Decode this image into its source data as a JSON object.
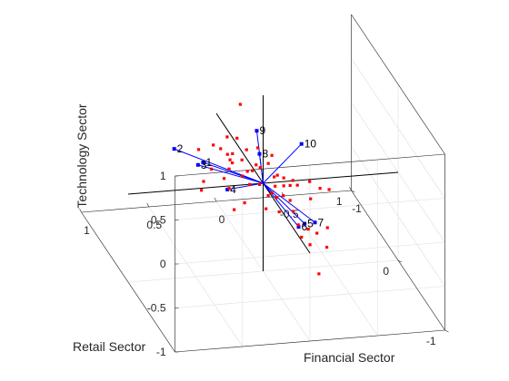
{
  "chart_data": {
    "type": "scatter",
    "subtype": "biplot-3d",
    "title": "",
    "xlabel": "Financial Sector",
    "ylabel": "Retail Sector",
    "zlabel": "Technology Sector",
    "xlim": [
      -1,
      1
    ],
    "ylim": [
      -1,
      1
    ],
    "zlim": [
      -1,
      1
    ],
    "x_ticks": [
      {
        "value": -1,
        "label": "-1"
      },
      {
        "value": -0.5,
        "label": "-0.5"
      },
      {
        "value": 0,
        "label": "0"
      },
      {
        "value": 0.5,
        "label": "0.5"
      },
      {
        "value": 1,
        "label": "1"
      }
    ],
    "y_ticks": [
      {
        "value": -1,
        "label": "-1"
      },
      {
        "value": 0,
        "label": "0"
      },
      {
        "value": 1,
        "label": "1"
      }
    ],
    "z_ticks": [
      {
        "value": -1,
        "label": "-1"
      },
      {
        "value": -0.5,
        "label": "-0.5"
      },
      {
        "value": 0,
        "label": "0"
      },
      {
        "value": 0.5,
        "label": "0.5"
      },
      {
        "value": 1,
        "label": "1"
      }
    ],
    "grid": true,
    "vector_color": "#0000ff",
    "point_color": "#ff0000",
    "axis_line_color": "#000000",
    "vectors": [
      {
        "label": "1",
        "x": 0.15,
        "y": 0.85,
        "z": -0.42
      },
      {
        "label": "2",
        "x": 0.43,
        "y": 0.66,
        "z": -0.08
      },
      {
        "label": "3",
        "x": 0.33,
        "y": 0.44,
        "z": -0.1
      },
      {
        "label": "4",
        "x": 0.14,
        "y": 0.36,
        "z": -0.34
      },
      {
        "label": "5",
        "x": -0.3,
        "y": -0.02,
        "z": -0.48
      },
      {
        "label": "6",
        "x": -0.28,
        "y": 0.05,
        "z": -0.57
      },
      {
        "label": "7",
        "x": -0.37,
        "y": -0.04,
        "z": -0.46
      },
      {
        "label": "8",
        "x": 0.02,
        "y": 0.02,
        "z": 0.32
      },
      {
        "label": "9",
        "x": 0.03,
        "y": 0.05,
        "z": 0.56
      },
      {
        "label": "10",
        "x": -0.26,
        "y": -0.07,
        "z": 0.47
      }
    ],
    "points": [
      {
        "x": 0.1,
        "y": 0.2,
        "z": 0.75
      },
      {
        "x": 0.18,
        "y": 0.25,
        "z": 0.35
      },
      {
        "x": 0.1,
        "y": 0.27,
        "z": 0.31
      },
      {
        "x": -0.03,
        "y": 0.2,
        "z": 0.24
      },
      {
        "x": 0.22,
        "y": 0.43,
        "z": 0.12
      },
      {
        "x": 0.19,
        "y": 0.36,
        "z": 0.13
      },
      {
        "x": 0.16,
        "y": 0.3,
        "z": 0.11
      },
      {
        "x": 0.13,
        "y": 0.28,
        "z": 0.13
      },
      {
        "x": 0.0,
        "y": 0.15,
        "z": 0.09
      },
      {
        "x": -0.13,
        "y": 0.07,
        "z": 0.02
      },
      {
        "x": 0.06,
        "y": 0.28,
        "z": 0.05
      },
      {
        "x": -0.02,
        "y": 0.12,
        "z": 0.08
      },
      {
        "x": 0.11,
        "y": 0.39,
        "z": -0.03
      },
      {
        "x": -0.21,
        "y": -0.03,
        "z": 0.03
      },
      {
        "x": 0.27,
        "y": 0.6,
        "z": -0.06
      },
      {
        "x": 0.1,
        "y": 0.37,
        "z": -0.05
      },
      {
        "x": -0.2,
        "y": 0.0,
        "z": -0.05
      },
      {
        "x": -0.24,
        "y": -0.04,
        "z": -0.02
      },
      {
        "x": -0.17,
        "y": 0.05,
        "z": 0.0
      },
      {
        "x": -0.12,
        "y": 0.11,
        "z": -0.03
      },
      {
        "x": -0.38,
        "y": -0.12,
        "z": -0.01
      },
      {
        "x": 0.11,
        "y": 0.41,
        "z": -0.15
      },
      {
        "x": 0.0,
        "y": 0.23,
        "z": -0.04
      },
      {
        "x": -0.17,
        "y": 0.05,
        "z": -0.09
      },
      {
        "x": -0.17,
        "y": 0.06,
        "z": -0.21
      },
      {
        "x": 0.14,
        "y": 0.43,
        "z": -0.27
      },
      {
        "x": 0.24,
        "y": 0.58,
        "z": -0.41
      },
      {
        "x": 0.01,
        "y": 0.26,
        "z": -0.22
      },
      {
        "x": -0.2,
        "y": 0.0,
        "z": -0.22
      },
      {
        "x": -0.09,
        "y": 0.15,
        "z": -0.27
      },
      {
        "x": 0.11,
        "y": 0.41,
        "z": -0.37
      },
      {
        "x": -0.13,
        "y": 0.09,
        "z": -0.25
      },
      {
        "x": -0.22,
        "y": -0.01,
        "z": -0.34
      },
      {
        "x": -0.4,
        "y": -0.22,
        "z": -0.38
      },
      {
        "x": -0.07,
        "y": 0.14,
        "z": -0.41
      },
      {
        "x": -0.25,
        "y": -0.03,
        "z": -0.48
      },
      {
        "x": -0.3,
        "y": -0.1,
        "z": -0.48
      },
      {
        "x": -0.35,
        "y": -0.14,
        "z": -0.5
      },
      {
        "x": -0.33,
        "y": -0.05,
        "z": -0.7
      },
      {
        "x": -0.42,
        "y": -0.15,
        "z": -0.66
      },
      {
        "x": -0.33,
        "y": -0.24,
        "z": -0.88
      },
      {
        "x": 0.21,
        "y": 0.5,
        "z": -0.21
      },
      {
        "x": 0.05,
        "y": 0.3,
        "z": -0.15
      },
      {
        "x": -0.04,
        "y": 0.19,
        "z": -0.17
      },
      {
        "x": 0.28,
        "y": 0.51,
        "z": -0.45
      },
      {
        "x": 0.04,
        "y": 0.28,
        "z": -0.44
      },
      {
        "x": -0.14,
        "y": 0.06,
        "z": -0.39
      },
      {
        "x": -0.31,
        "y": -0.12,
        "z": -0.12
      },
      {
        "x": -0.11,
        "y": 0.13,
        "z": 0.2
      },
      {
        "x": 0.05,
        "y": 0.21,
        "z": 0.22
      },
      {
        "x": -0.08,
        "y": 0.12,
        "z": 0.12
      },
      {
        "x": -0.31,
        "y": -0.1,
        "z": 0.06
      },
      {
        "x": -0.43,
        "y": -0.17,
        "z": 0.01
      },
      {
        "x": 0.1,
        "y": 0.33,
        "z": -0.55
      },
      {
        "x": -0.26,
        "y": -0.07,
        "z": -0.59
      },
      {
        "x": -0.1,
        "y": 0.1,
        "z": -0.2
      },
      {
        "x": 0.03,
        "y": 0.25,
        "z": -0.06
      },
      {
        "x": -0.12,
        "y": 0.09,
        "z": -0.12
      }
    ]
  }
}
